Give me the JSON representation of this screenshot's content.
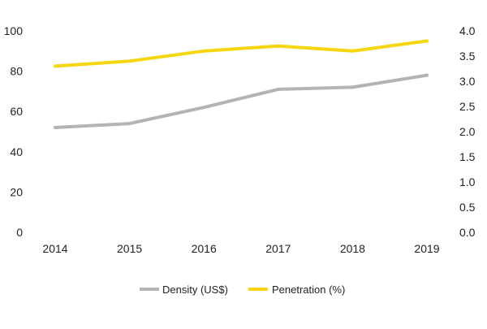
{
  "chart_data": {
    "type": "line",
    "title": "",
    "xlabel": "",
    "ylabel": "",
    "categories": [
      "2014",
      "2015",
      "2016",
      "2017",
      "2018",
      "2019"
    ],
    "y_left": {
      "ylim": [
        0,
        100
      ],
      "ticks": [
        "100",
        "80",
        "60",
        "40",
        "20",
        "0"
      ]
    },
    "y_right": {
      "ylim": [
        0,
        4.0
      ],
      "ticks": [
        "4.0",
        "3.5",
        "3.0",
        "2.5",
        "2.0",
        "1.5",
        "1.0",
        "0.5",
        "0.0"
      ]
    },
    "grid": false,
    "legend_position": "bottom",
    "series": [
      {
        "name": "Density (US$)",
        "axis": "left",
        "color": "#b3b3b3",
        "values": [
          52,
          54,
          62,
          71,
          72,
          78
        ]
      },
      {
        "name": "Penetration (%)",
        "axis": "right",
        "color": "#f5d60f",
        "values": [
          3.3,
          3.4,
          3.6,
          3.7,
          3.6,
          3.8
        ]
      }
    ]
  }
}
